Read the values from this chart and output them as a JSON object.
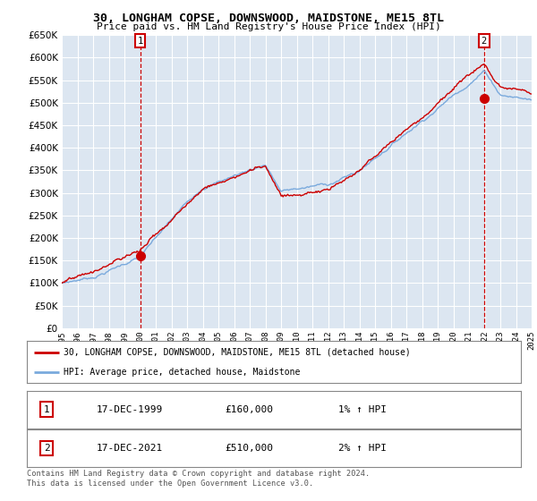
{
  "title": "30, LONGHAM COPSE, DOWNSWOOD, MAIDSTONE, ME15 8TL",
  "subtitle": "Price paid vs. HM Land Registry's House Price Index (HPI)",
  "ylim": [
    0,
    650000
  ],
  "yticks": [
    0,
    50000,
    100000,
    150000,
    200000,
    250000,
    300000,
    350000,
    400000,
    450000,
    500000,
    550000,
    600000,
    650000
  ],
  "plot_bg_color": "#dce6f1",
  "grid_color": "#ffffff",
  "hpi_color": "#7aaadd",
  "price_color": "#cc0000",
  "sale1_year": 2000.0,
  "sale1_price": 160000,
  "sale2_year": 2021.96,
  "sale2_price": 510000,
  "legend_label1": "30, LONGHAM COPSE, DOWNSWOOD, MAIDSTONE, ME15 8TL (detached house)",
  "legend_label2": "HPI: Average price, detached house, Maidstone",
  "annotation1_label": "1",
  "annotation2_label": "2",
  "table_row1": [
    "1",
    "17-DEC-1999",
    "£160,000",
    "1% ↑ HPI"
  ],
  "table_row2": [
    "2",
    "17-DEC-2021",
    "£510,000",
    "2% ↑ HPI"
  ],
  "footnote": "Contains HM Land Registry data © Crown copyright and database right 2024.\nThis data is licensed under the Open Government Licence v3.0.",
  "xmin": 1995,
  "xmax": 2025,
  "xticks": [
    1995,
    1996,
    1997,
    1998,
    1999,
    2000,
    2001,
    2002,
    2003,
    2004,
    2005,
    2006,
    2007,
    2008,
    2009,
    2010,
    2011,
    2012,
    2013,
    2014,
    2015,
    2016,
    2017,
    2018,
    2019,
    2020,
    2021,
    2022,
    2023,
    2024,
    2025
  ]
}
